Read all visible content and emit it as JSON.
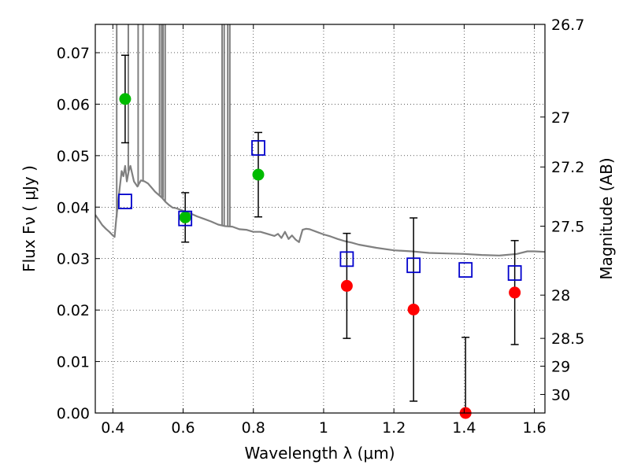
{
  "chart_data": {
    "type": "scatter",
    "xlabel": "Wavelength  λ (μm)",
    "ylabel_left": "Flux  Fν  ( μJy )",
    "ylabel_right": "Magnitude (AB)",
    "xlim": [
      0.35,
      1.63
    ],
    "ylim": [
      0.0,
      0.0755
    ],
    "grid": true,
    "x_ticks": [
      0.4,
      0.6,
      0.8,
      1.0,
      1.2,
      1.4,
      1.6
    ],
    "x_tick_labels": [
      "0.4",
      "0.6",
      "0.8",
      "1",
      "1.2",
      "1.4",
      "1.6"
    ],
    "y_ticks": [
      0.0,
      0.01,
      0.02,
      0.03,
      0.04,
      0.05,
      0.06,
      0.07
    ],
    "y_tick_labels": [
      "0.00",
      "0.01",
      "0.02",
      "0.03",
      "0.04",
      "0.05",
      "0.06",
      "0.07"
    ],
    "right_ticks": [
      {
        "label": "26.7",
        "flux": 0.0755
      },
      {
        "label": "27",
        "flux": 0.0575
      },
      {
        "label": "27.2",
        "flux": 0.0478
      },
      {
        "label": "27.5",
        "flux": 0.0363
      },
      {
        "label": "28",
        "flux": 0.0229
      },
      {
        "label": "28.5",
        "flux": 0.0145
      },
      {
        "label": "29",
        "flux": 0.0091
      },
      {
        "label": "30",
        "flux": 0.0036
      }
    ],
    "series": [
      {
        "marker": "circle",
        "color": "#00bb00",
        "points": [
          {
            "x": 0.435,
            "y": 0.061,
            "err": 0.0085
          },
          {
            "x": 0.606,
            "y": 0.038,
            "err": 0.0048
          },
          {
            "x": 0.814,
            "y": 0.0463,
            "err": 0.0082
          }
        ]
      },
      {
        "marker": "circle",
        "color": "#ff0000",
        "points": [
          {
            "x": 1.066,
            "y": 0.0247,
            "err": 0.0102
          },
          {
            "x": 1.256,
            "y": 0.0201,
            "err": 0.0178
          },
          {
            "x": 1.404,
            "y": 0.0,
            "err": 0.0147
          },
          {
            "x": 1.544,
            "y": 0.0234,
            "err": 0.0101
          }
        ]
      },
      {
        "marker": "square-open",
        "color": "#0000cc",
        "points": [
          {
            "x": 0.435,
            "y": 0.0411
          },
          {
            "x": 0.606,
            "y": 0.0378
          },
          {
            "x": 0.814,
            "y": 0.0515
          },
          {
            "x": 1.066,
            "y": 0.0299
          },
          {
            "x": 1.256,
            "y": 0.0287
          },
          {
            "x": 1.404,
            "y": 0.0278
          },
          {
            "x": 1.544,
            "y": 0.0272
          }
        ]
      }
    ],
    "template_sed": {
      "color": "#808080",
      "points": [
        [
          0.35,
          0.0385
        ],
        [
          0.36,
          0.0375
        ],
        [
          0.37,
          0.0365
        ],
        [
          0.38,
          0.0358
        ],
        [
          0.39,
          0.0352
        ],
        [
          0.4,
          0.0345
        ],
        [
          0.405,
          0.0342
        ],
        [
          0.41,
          0.038
        ],
        [
          0.42,
          0.044
        ],
        [
          0.425,
          0.047
        ],
        [
          0.43,
          0.046
        ],
        [
          0.435,
          0.048
        ],
        [
          0.44,
          0.045
        ],
        [
          0.445,
          0.047
        ],
        [
          0.45,
          0.048
        ],
        [
          0.46,
          0.045
        ],
        [
          0.47,
          0.044
        ],
        [
          0.48,
          0.0452
        ],
        [
          0.49,
          0.045
        ],
        [
          0.5,
          0.0446
        ],
        [
          0.51,
          0.0438
        ],
        [
          0.52,
          0.043
        ],
        [
          0.53,
          0.0424
        ],
        [
          0.54,
          0.0418
        ],
        [
          0.55,
          0.041
        ],
        [
          0.56,
          0.0404
        ],
        [
          0.57,
          0.0399
        ],
        [
          0.58,
          0.0398
        ],
        [
          0.6,
          0.0393
        ],
        [
          0.62,
          0.0388
        ],
        [
          0.64,
          0.0382
        ],
        [
          0.66,
          0.0377
        ],
        [
          0.68,
          0.0372
        ],
        [
          0.7,
          0.0366
        ],
        [
          0.72,
          0.0363
        ],
        [
          0.74,
          0.0362
        ],
        [
          0.76,
          0.0357
        ],
        [
          0.78,
          0.0356
        ],
        [
          0.8,
          0.0352
        ],
        [
          0.82,
          0.0352
        ],
        [
          0.84,
          0.0348
        ],
        [
          0.86,
          0.0344
        ],
        [
          0.87,
          0.0348
        ],
        [
          0.88,
          0.034
        ],
        [
          0.89,
          0.0352
        ],
        [
          0.9,
          0.0338
        ],
        [
          0.91,
          0.0345
        ],
        [
          0.92,
          0.0337
        ],
        [
          0.93,
          0.0332
        ],
        [
          0.94,
          0.0356
        ],
        [
          0.95,
          0.0358
        ],
        [
          0.96,
          0.0357
        ],
        [
          0.98,
          0.0352
        ],
        [
          1.0,
          0.0347
        ],
        [
          1.02,
          0.0343
        ],
        [
          1.04,
          0.0338
        ],
        [
          1.06,
          0.0334
        ],
        [
          1.08,
          0.0331
        ],
        [
          1.1,
          0.0327
        ],
        [
          1.15,
          0.0321
        ],
        [
          1.2,
          0.0316
        ],
        [
          1.25,
          0.0314
        ],
        [
          1.3,
          0.0311
        ],
        [
          1.35,
          0.031
        ],
        [
          1.4,
          0.0309
        ],
        [
          1.45,
          0.0307
        ],
        [
          1.5,
          0.0306
        ],
        [
          1.55,
          0.0309
        ],
        [
          1.58,
          0.0314
        ],
        [
          1.6,
          0.0314
        ],
        [
          1.63,
          0.0313
        ]
      ],
      "emission_lines": [
        [
          0.411,
          0.444
        ],
        [
          0.472,
          0.486
        ],
        [
          0.533,
          0.539
        ],
        [
          0.543,
          0.549
        ],
        [
          0.711,
          0.717
        ],
        [
          0.727,
          0.733
        ]
      ]
    }
  }
}
